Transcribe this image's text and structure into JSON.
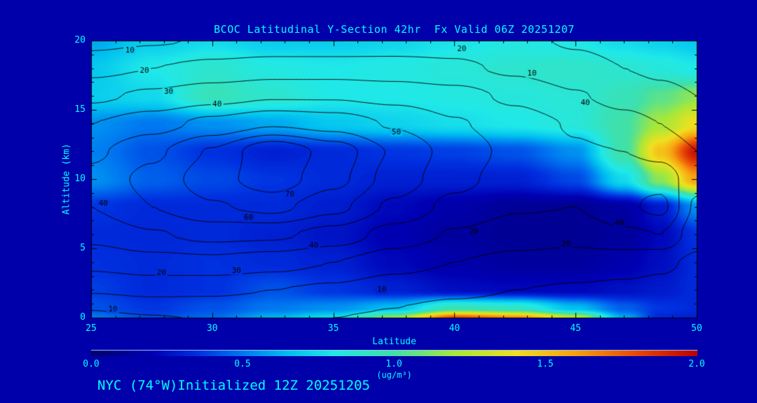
{
  "page": {
    "background": "#0000AA",
    "text_color": "#00FFFF"
  },
  "title": "BCOC Latitudinal Y-Section 42hr  Fx Valid 06Z 20251207",
  "footer": "NYC (74°W)Initialized 12Z 20251205",
  "chart_data": {
    "type": "heatmap",
    "title": "BCOC Latitudinal Y-Section 42hr  Fx Valid 06Z 20251207",
    "xlabel": "Latitude",
    "ylabel": "Altitude (km)",
    "xlim": [
      25,
      50
    ],
    "ylim": [
      0,
      20
    ],
    "xticks": [
      "25",
      "30",
      "35",
      "40",
      "45",
      "50"
    ],
    "yticks": [
      "0",
      "5",
      "10",
      "15",
      "20"
    ],
    "grid": false,
    "contour_color": "#000000",
    "colorbar": {
      "min": 0.0,
      "max": 2.0,
      "tick_labels": [
        "0.0",
        "0.5",
        "1.0",
        "1.5",
        "2.0"
      ],
      "units": "(ug/m³)"
    },
    "colormap": [
      [
        0.0,
        "#00006E"
      ],
      [
        0.2,
        "#0000B4"
      ],
      [
        0.35,
        "#0030E0"
      ],
      [
        0.5,
        "#0078F0"
      ],
      [
        0.65,
        "#00C0F0"
      ],
      [
        0.8,
        "#20E8E8"
      ],
      [
        1.0,
        "#40E0A8"
      ],
      [
        1.2,
        "#A8E838"
      ],
      [
        1.4,
        "#F0E020"
      ],
      [
        1.6,
        "#F8A010"
      ],
      [
        1.8,
        "#E84808"
      ],
      [
        2.0,
        "#BC0000"
      ]
    ],
    "fill_field": {
      "units": "ug/m3",
      "lat": [
        25,
        27.5,
        30,
        32.5,
        35,
        37.5,
        40,
        42.5,
        45,
        47,
        48.5,
        50
      ],
      "alt": [
        0,
        0.7,
        2,
        4,
        6,
        8,
        10,
        12,
        14,
        16,
        18,
        20
      ],
      "values": [
        [
          0.5,
          0.4,
          0.47,
          0.62,
          0.75,
          1.15,
          1.8,
          1.65,
          1.25,
          0.6,
          0.32,
          0.3
        ],
        [
          0.42,
          0.36,
          0.42,
          0.5,
          0.55,
          0.65,
          0.95,
          0.9,
          0.65,
          0.45,
          0.36,
          0.33
        ],
        [
          0.38,
          0.33,
          0.35,
          0.42,
          0.36,
          0.3,
          0.24,
          0.22,
          0.22,
          0.25,
          0.28,
          0.33
        ],
        [
          0.35,
          0.33,
          0.35,
          0.33,
          0.3,
          0.22,
          0.17,
          0.14,
          0.14,
          0.18,
          0.24,
          0.33
        ],
        [
          0.33,
          0.32,
          0.33,
          0.3,
          0.26,
          0.19,
          0.14,
          0.11,
          0.1,
          0.13,
          0.22,
          0.35
        ],
        [
          0.36,
          0.33,
          0.33,
          0.33,
          0.29,
          0.22,
          0.17,
          0.12,
          0.11,
          0.15,
          0.28,
          0.55
        ],
        [
          0.55,
          0.45,
          0.4,
          0.36,
          0.33,
          0.3,
          0.3,
          0.3,
          0.4,
          0.75,
          1.15,
          1.6
        ],
        [
          0.52,
          0.42,
          0.35,
          0.3,
          0.33,
          0.36,
          0.38,
          0.42,
          0.55,
          1.0,
          1.5,
          1.95
        ],
        [
          0.55,
          0.5,
          0.55,
          0.6,
          0.68,
          0.72,
          0.76,
          0.8,
          0.85,
          1.0,
          1.2,
          1.4
        ],
        [
          0.7,
          0.74,
          0.95,
          0.88,
          0.8,
          0.8,
          0.82,
          0.84,
          0.86,
          0.95,
          1.05,
          1.15
        ],
        [
          0.68,
          0.8,
          0.88,
          0.82,
          0.8,
          0.82,
          0.85,
          0.88,
          0.9,
          0.87,
          0.84,
          0.8
        ],
        [
          0.6,
          0.7,
          0.75,
          0.7,
          0.7,
          0.73,
          0.78,
          0.82,
          0.8,
          0.75,
          0.72,
          0.68
        ]
      ]
    },
    "contour_field": {
      "levels": [
        10,
        20,
        30,
        40,
        50,
        60,
        70,
        80
      ],
      "lat": [
        25,
        27.5,
        30,
        32.5,
        35,
        37.5,
        40,
        42.5,
        45,
        47,
        48.5,
        50
      ],
      "alt": [
        0,
        0.7,
        2,
        4,
        6,
        8,
        10,
        12,
        14,
        16,
        18,
        20
      ],
      "values": [
        [
          6,
          9,
          11,
          12,
          10,
          8,
          6,
          5,
          5,
          4,
          3,
          2
        ],
        [
          11,
          14,
          15,
          14,
          12,
          10,
          8,
          7,
          6,
          5,
          4,
          3
        ],
        [
          21,
          23,
          22,
          20,
          18,
          14,
          12,
          10,
          9,
          8,
          7,
          5
        ],
        [
          33,
          36,
          37,
          34,
          30,
          24,
          20,
          17,
          15,
          14,
          12,
          8
        ],
        [
          43,
          49,
          53,
          52,
          46,
          36,
          29,
          25,
          24,
          28,
          30,
          14
        ],
        [
          50,
          60,
          69,
          73,
          63,
          48,
          37,
          31,
          30,
          38,
          43,
          18
        ],
        [
          53,
          63,
          76,
          86,
          73,
          56,
          43,
          35,
          33,
          37,
          36,
          24
        ],
        [
          48,
          58,
          71,
          89,
          76,
          59,
          46,
          37,
          31,
          30,
          27,
          20
        ],
        [
          40,
          46,
          53,
          59,
          56,
          49,
          41,
          35,
          29,
          24,
          20,
          15
        ],
        [
          28,
          32,
          36,
          39,
          39,
          37,
          34,
          28,
          21,
          16,
          13,
          10
        ],
        [
          17,
          20,
          23,
          25,
          25,
          24,
          22,
          18,
          13,
          10,
          8,
          6
        ],
        [
          7,
          9,
          11,
          12,
          12,
          14,
          15,
          12,
          9,
          7,
          5,
          4
        ]
      ]
    },
    "contour_labels": [
      {
        "lat": 26.6,
        "alt": 19.3,
        "text": "10"
      },
      {
        "lat": 27.2,
        "alt": 17.8,
        "text": "20"
      },
      {
        "lat": 28.2,
        "alt": 16.3,
        "text": "30"
      },
      {
        "lat": 30.2,
        "alt": 15.4,
        "text": "40"
      },
      {
        "lat": 37.6,
        "alt": 13.4,
        "text": "50"
      },
      {
        "lat": 40.3,
        "alt": 19.4,
        "text": "20"
      },
      {
        "lat": 43.2,
        "alt": 17.6,
        "text": "10"
      },
      {
        "lat": 45.4,
        "alt": 15.5,
        "text": "40"
      },
      {
        "lat": 25.5,
        "alt": 8.2,
        "text": "40"
      },
      {
        "lat": 27.9,
        "alt": 3.2,
        "text": "20"
      },
      {
        "lat": 31.0,
        "alt": 3.4,
        "text": "30"
      },
      {
        "lat": 34.2,
        "alt": 5.2,
        "text": "40"
      },
      {
        "lat": 31.5,
        "alt": 7.2,
        "text": "60"
      },
      {
        "lat": 33.2,
        "alt": 8.9,
        "text": "70"
      },
      {
        "lat": 40.8,
        "alt": 6.2,
        "text": "20"
      },
      {
        "lat": 44.6,
        "alt": 5.3,
        "text": "20"
      },
      {
        "lat": 46.8,
        "alt": 6.8,
        "text": "40"
      },
      {
        "lat": 25.9,
        "alt": 0.6,
        "text": "10"
      },
      {
        "lat": 37.0,
        "alt": 2.0,
        "text": "10"
      }
    ]
  }
}
